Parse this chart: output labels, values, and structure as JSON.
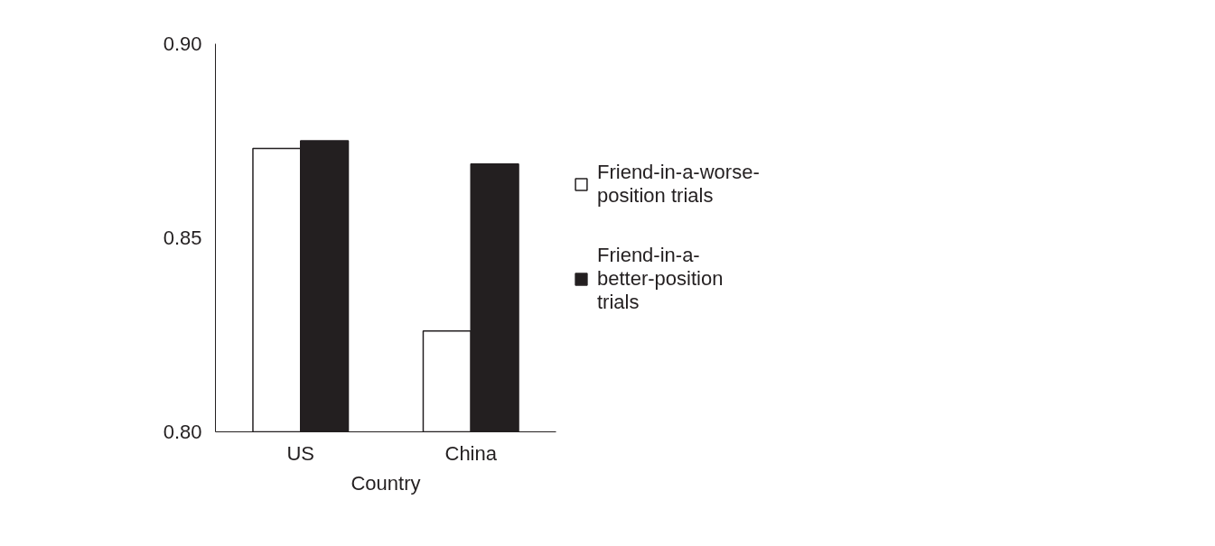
{
  "chart_data": {
    "type": "bar",
    "xlabel": "Country",
    "categories": [
      "US",
      "China"
    ],
    "series": [
      {
        "name": "Friend-in-a-worse-position trials",
        "color": "#ffffff",
        "values": [
          0.873,
          0.826
        ]
      },
      {
        "name": "Friend-in-a-better-position trials",
        "color": "#231f20",
        "values": [
          0.875,
          0.869
        ]
      }
    ],
    "ylim": [
      0.8,
      0.9
    ],
    "yticks": [
      {
        "value": 0.8,
        "label": "0.80"
      },
      {
        "value": 0.85,
        "label": "0.85"
      },
      {
        "value": 0.9,
        "label": "0.90"
      }
    ],
    "grid": false,
    "legend": "right"
  }
}
